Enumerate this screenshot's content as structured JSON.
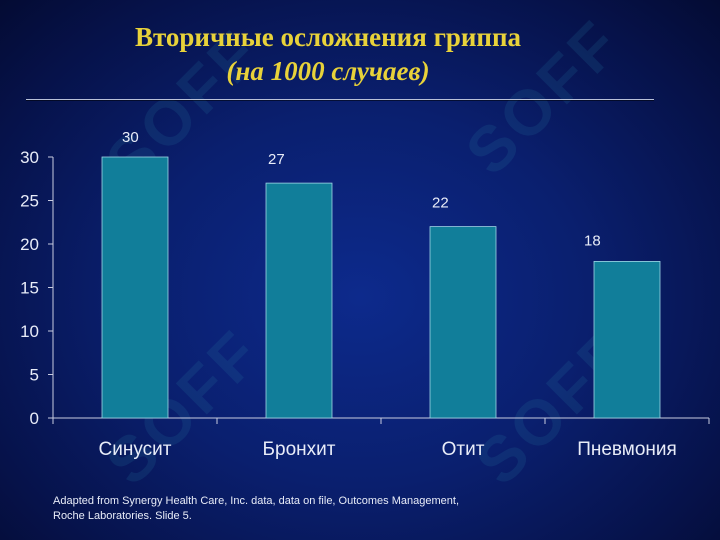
{
  "watermark": "SOFF",
  "chart_data": {
    "type": "bar",
    "title": "Вторичные осложнения гриппа",
    "subtitle": "(на 1000 случаев)",
    "categories": [
      "Синусит",
      "Бронхит",
      "Отит",
      "Пневмония"
    ],
    "values": [
      30,
      27,
      22,
      18
    ],
    "ylim": [
      0,
      30
    ],
    "yticks": [
      "0",
      "5",
      "10",
      "15",
      "20",
      "25",
      "30"
    ],
    "grid": false,
    "legend": "none",
    "bar_color": "#117e9a",
    "title_color": "#e8d23a"
  },
  "footnote": {
    "line1": "Adapted from Synergy Health Care, Inc. data, data on file, Outcomes Management,",
    "line2": "Roche Laboratories. Slide 5."
  }
}
